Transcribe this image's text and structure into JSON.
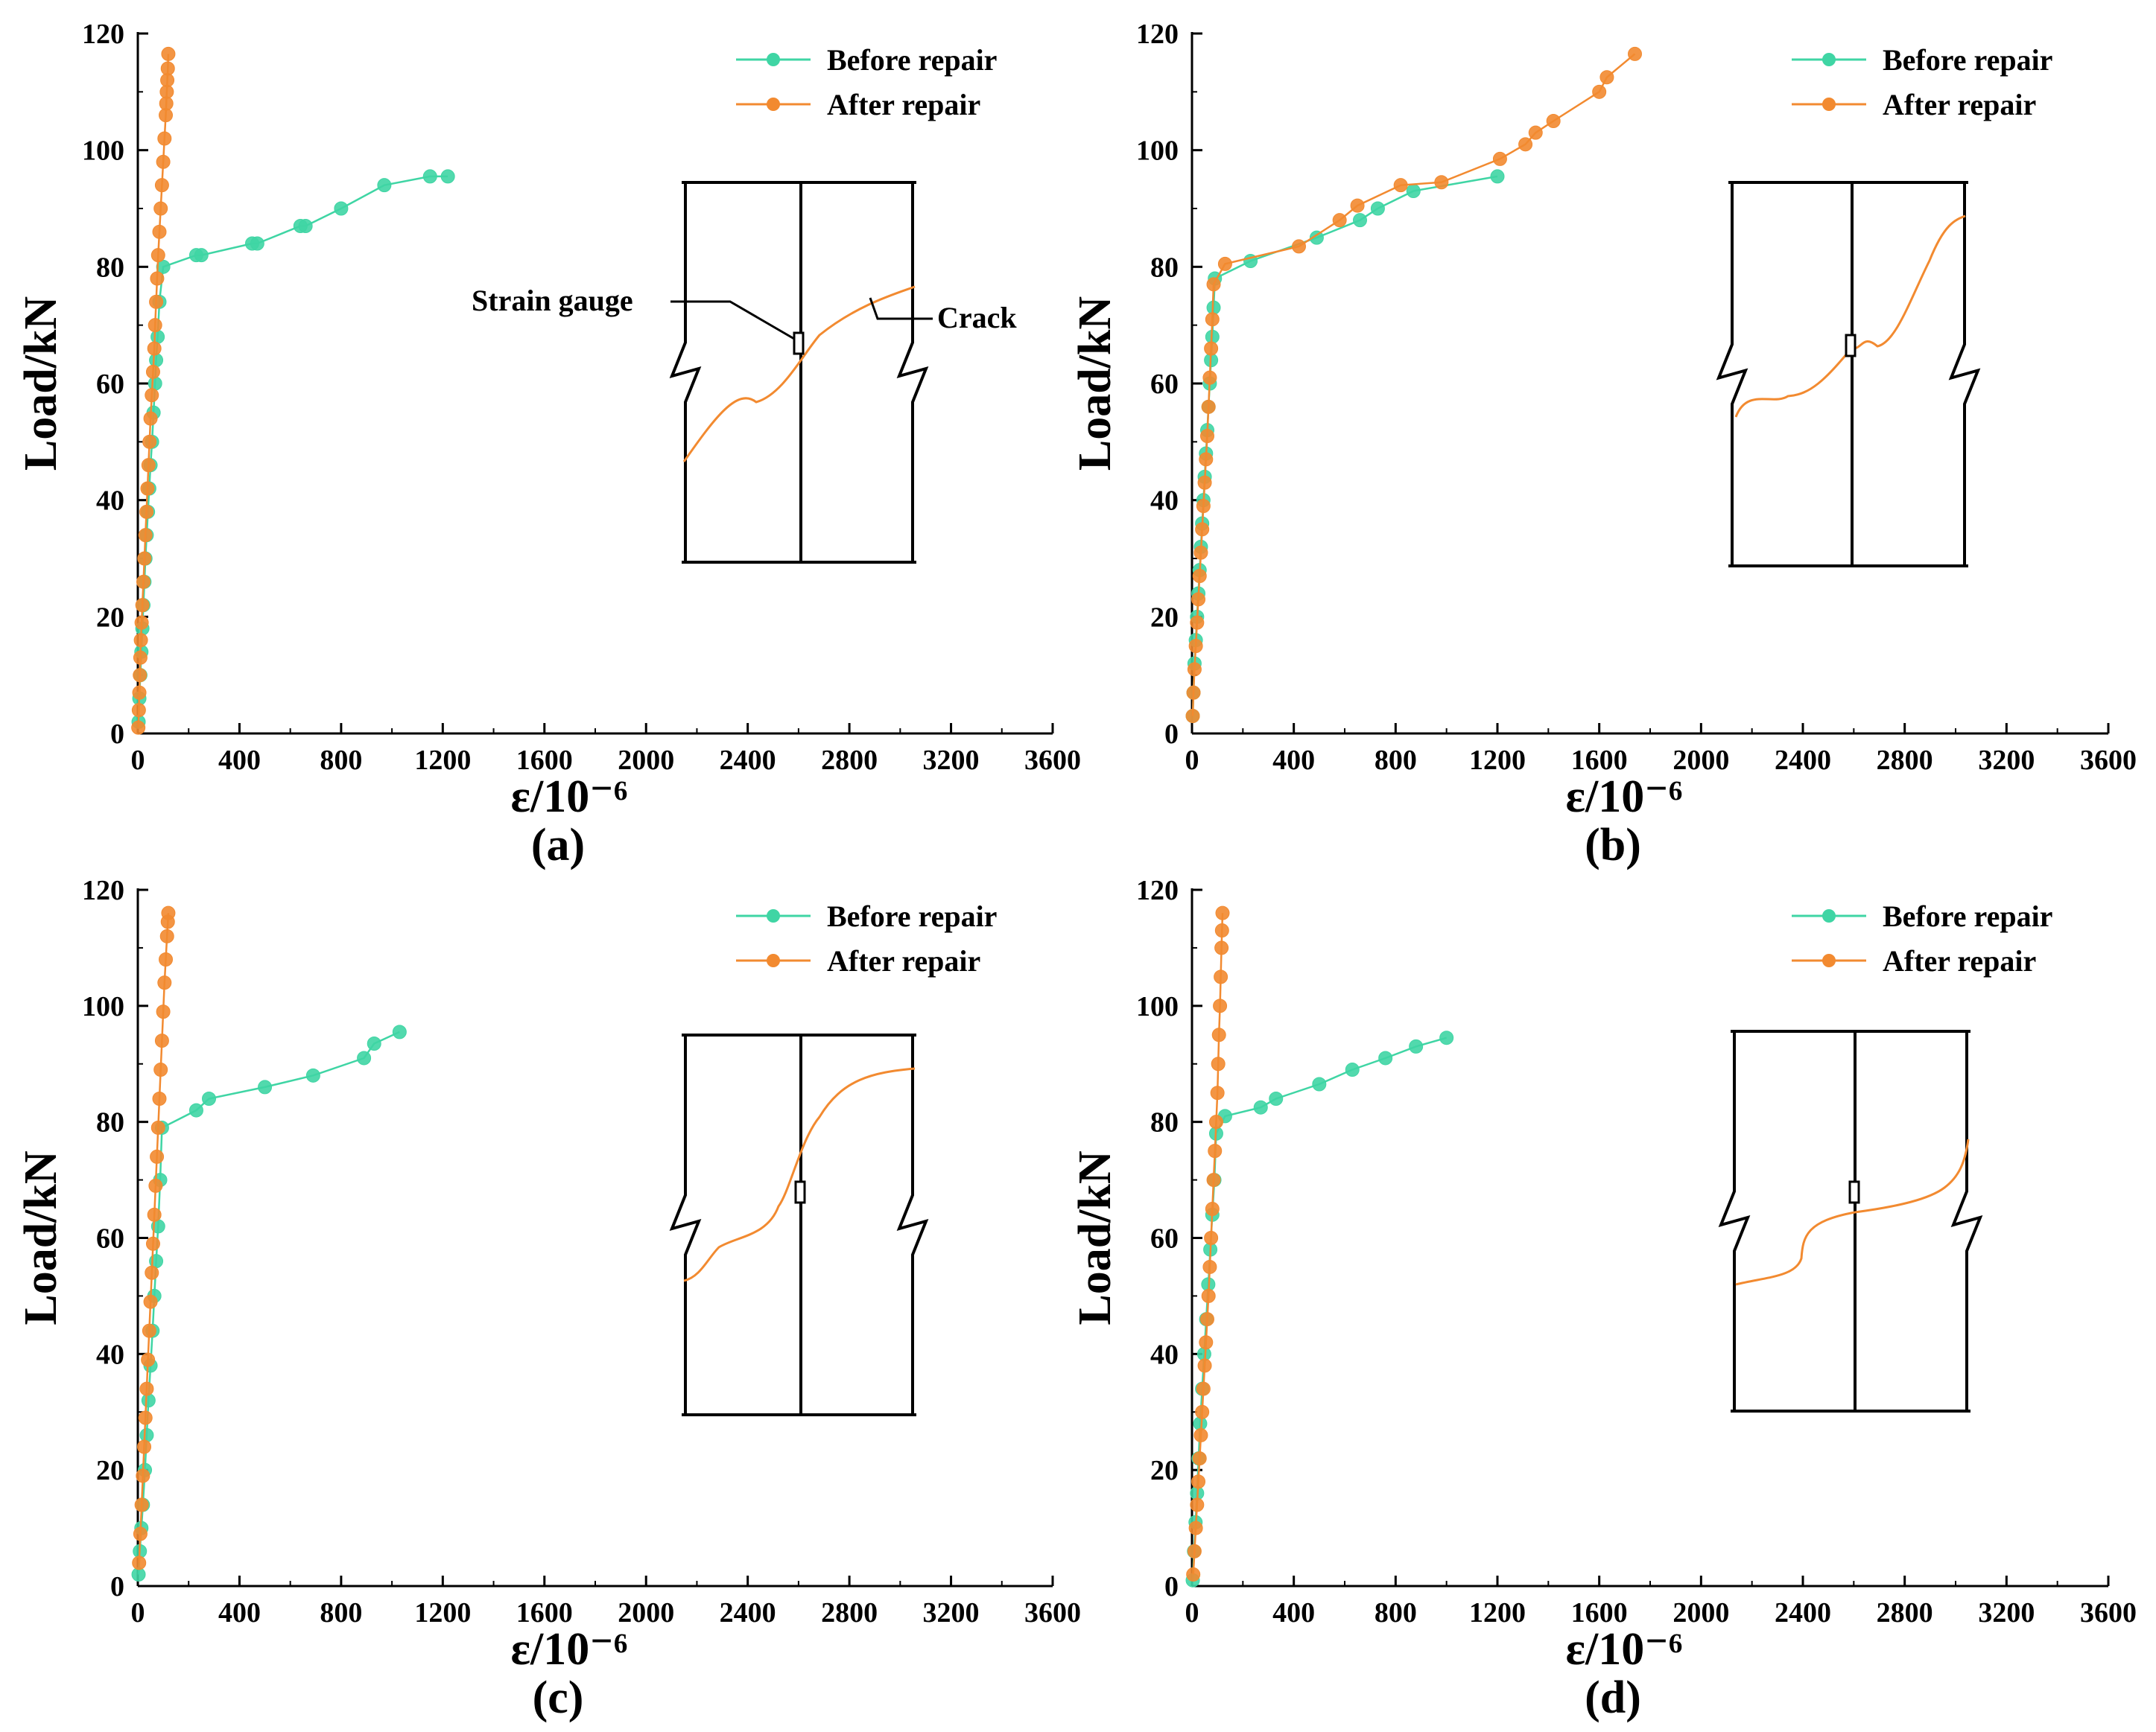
{
  "figure": {
    "colors": {
      "before": "#3fd5a4",
      "after": "#f28a30",
      "axis": "#000000"
    },
    "legend": {
      "before": "Before repair",
      "after": "After repair"
    }
  },
  "chart_data": [
    {
      "type": "line",
      "panel_label": "(a)",
      "xlabel": "ε/10⁻⁶",
      "ylabel": "Load/kN",
      "xlim": [
        0,
        3600
      ],
      "ylim": [
        0,
        120
      ],
      "xticks": [
        0,
        400,
        800,
        1200,
        1600,
        2000,
        2400,
        2800,
        3200,
        3600
      ],
      "yticks": [
        0,
        20,
        40,
        60,
        80,
        100,
        120
      ],
      "legend": "top-right",
      "inset": {
        "strain_gauge_label": "Strain gauge",
        "crack_label": "Crack"
      },
      "series": [
        {
          "name": "Before repair",
          "x": [
            3,
            6,
            10,
            14,
            18,
            22,
            26,
            30,
            35,
            40,
            45,
            50,
            56,
            62,
            68,
            72,
            78,
            85,
            100,
            230,
            250,
            450,
            470,
            640,
            660,
            800,
            970,
            1150,
            1220
          ],
          "y": [
            2,
            6,
            10,
            14,
            18,
            22,
            26,
            30,
            34,
            38,
            42,
            46,
            50,
            55,
            60,
            64,
            68,
            74,
            80,
            82,
            82,
            84,
            84,
            87,
            87,
            90,
            94,
            95.5,
            95.5
          ]
        },
        {
          "name": "After repair",
          "x": [
            2,
            4,
            6,
            8,
            10,
            12,
            15,
            18,
            22,
            26,
            30,
            34,
            38,
            42,
            46,
            50,
            55,
            60,
            65,
            68,
            72,
            76,
            80,
            85,
            90,
            95,
            100,
            105,
            110,
            112,
            114,
            116,
            118,
            120
          ],
          "y": [
            1,
            4,
            7,
            10,
            13,
            16,
            19,
            22,
            26,
            30,
            34,
            38,
            42,
            46,
            50,
            54,
            58,
            62,
            66,
            70,
            74,
            78,
            82,
            86,
            90,
            94,
            98,
            102,
            106,
            108,
            110,
            112,
            114,
            116.5
          ]
        }
      ]
    },
    {
      "type": "line",
      "panel_label": "(b)",
      "xlabel": "ε/10⁻⁶",
      "ylabel": "Load/kN",
      "xlim": [
        0,
        3600
      ],
      "ylim": [
        0,
        120
      ],
      "xticks": [
        0,
        400,
        800,
        1200,
        1600,
        2000,
        2400,
        2800,
        3200,
        3600
      ],
      "yticks": [
        0,
        20,
        40,
        60,
        80,
        100,
        120
      ],
      "legend": "top-right",
      "series": [
        {
          "name": "Before repair",
          "x": [
            3,
            6,
            10,
            15,
            20,
            25,
            30,
            35,
            40,
            45,
            50,
            55,
            60,
            65,
            70,
            75,
            80,
            85,
            90,
            230,
            490,
            660,
            730,
            870,
            1200
          ],
          "y": [
            3,
            7,
            12,
            16,
            20,
            24,
            28,
            32,
            36,
            40,
            44,
            48,
            52,
            56,
            60,
            64,
            68,
            73,
            78,
            81,
            85,
            88,
            90,
            93,
            95.5
          ]
        },
        {
          "name": "After repair",
          "x": [
            3,
            6,
            10,
            15,
            20,
            25,
            30,
            35,
            40,
            45,
            50,
            55,
            60,
            65,
            70,
            75,
            80,
            85,
            130,
            420,
            580,
            650,
            820,
            980,
            1210,
            1310,
            1350,
            1420,
            1600,
            1630,
            1740
          ],
          "y": [
            3,
            7,
            11,
            15,
            19,
            23,
            27,
            31,
            35,
            39,
            43,
            47,
            51,
            56,
            61,
            66,
            71,
            77,
            80.5,
            83.5,
            88,
            90.5,
            94,
            94.5,
            98.5,
            101,
            103,
            105,
            110,
            112.5,
            116.5
          ]
        }
      ]
    },
    {
      "type": "line",
      "panel_label": "(c)",
      "xlabel": "ε/10⁻⁶",
      "ylabel": "Load/kN",
      "xlim": [
        0,
        3600
      ],
      "ylim": [
        0,
        120
      ],
      "xticks": [
        0,
        400,
        800,
        1200,
        1600,
        2000,
        2400,
        2800,
        3200,
        3600
      ],
      "yticks": [
        0,
        20,
        40,
        60,
        80,
        100,
        120
      ],
      "legend": "top-right",
      "series": [
        {
          "name": "Before repair",
          "x": [
            3,
            8,
            14,
            20,
            28,
            35,
            42,
            50,
            58,
            65,
            72,
            80,
            88,
            95,
            230,
            280,
            500,
            690,
            890,
            930,
            1030
          ],
          "y": [
            2,
            6,
            10,
            14,
            20,
            26,
            32,
            38,
            44,
            50,
            56,
            62,
            70,
            79,
            82,
            84,
            86,
            88,
            91,
            93.5,
            95.5
          ]
        },
        {
          "name": "After repair",
          "x": [
            5,
            10,
            15,
            20,
            25,
            30,
            35,
            40,
            45,
            50,
            55,
            60,
            65,
            70,
            75,
            80,
            85,
            90,
            95,
            100,
            105,
            110,
            115,
            118,
            120
          ],
          "y": [
            4,
            9,
            14,
            19,
            24,
            29,
            34,
            39,
            44,
            49,
            54,
            59,
            64,
            69,
            74,
            79,
            84,
            89,
            94,
            99,
            104,
            108,
            112,
            114.5,
            116
          ]
        }
      ]
    },
    {
      "type": "line",
      "panel_label": "(d)",
      "xlabel": "ε/10⁻⁶",
      "ylabel": "Load/kN",
      "xlim": [
        0,
        3600
      ],
      "ylim": [
        0,
        120
      ],
      "xticks": [
        0,
        400,
        800,
        1200,
        1600,
        2000,
        2400,
        2800,
        3200,
        3600
      ],
      "yticks": [
        0,
        20,
        40,
        60,
        80,
        100,
        120
      ],
      "legend": "top-right",
      "series": [
        {
          "name": "Before repair",
          "x": [
            3,
            8,
            14,
            20,
            26,
            32,
            40,
            48,
            56,
            64,
            72,
            80,
            88,
            95,
            130,
            270,
            330,
            500,
            630,
            760,
            880,
            1000
          ],
          "y": [
            1,
            6,
            11,
            16,
            22,
            28,
            34,
            40,
            46,
            52,
            58,
            64,
            70,
            78,
            81,
            82.5,
            84,
            86.5,
            89,
            91,
            93,
            94.5
          ]
        },
        {
          "name": "After repair",
          "x": [
            5,
            10,
            15,
            20,
            25,
            30,
            35,
            40,
            45,
            50,
            55,
            60,
            65,
            70,
            75,
            80,
            85,
            90,
            95,
            100,
            103,
            106,
            110,
            113,
            116,
            118,
            120
          ],
          "y": [
            2,
            6,
            10,
            14,
            18,
            22,
            26,
            30,
            34,
            38,
            42,
            46,
            50,
            55,
            60,
            65,
            70,
            75,
            80,
            85,
            90,
            95,
            100,
            105,
            110,
            113,
            116
          ]
        }
      ]
    }
  ]
}
